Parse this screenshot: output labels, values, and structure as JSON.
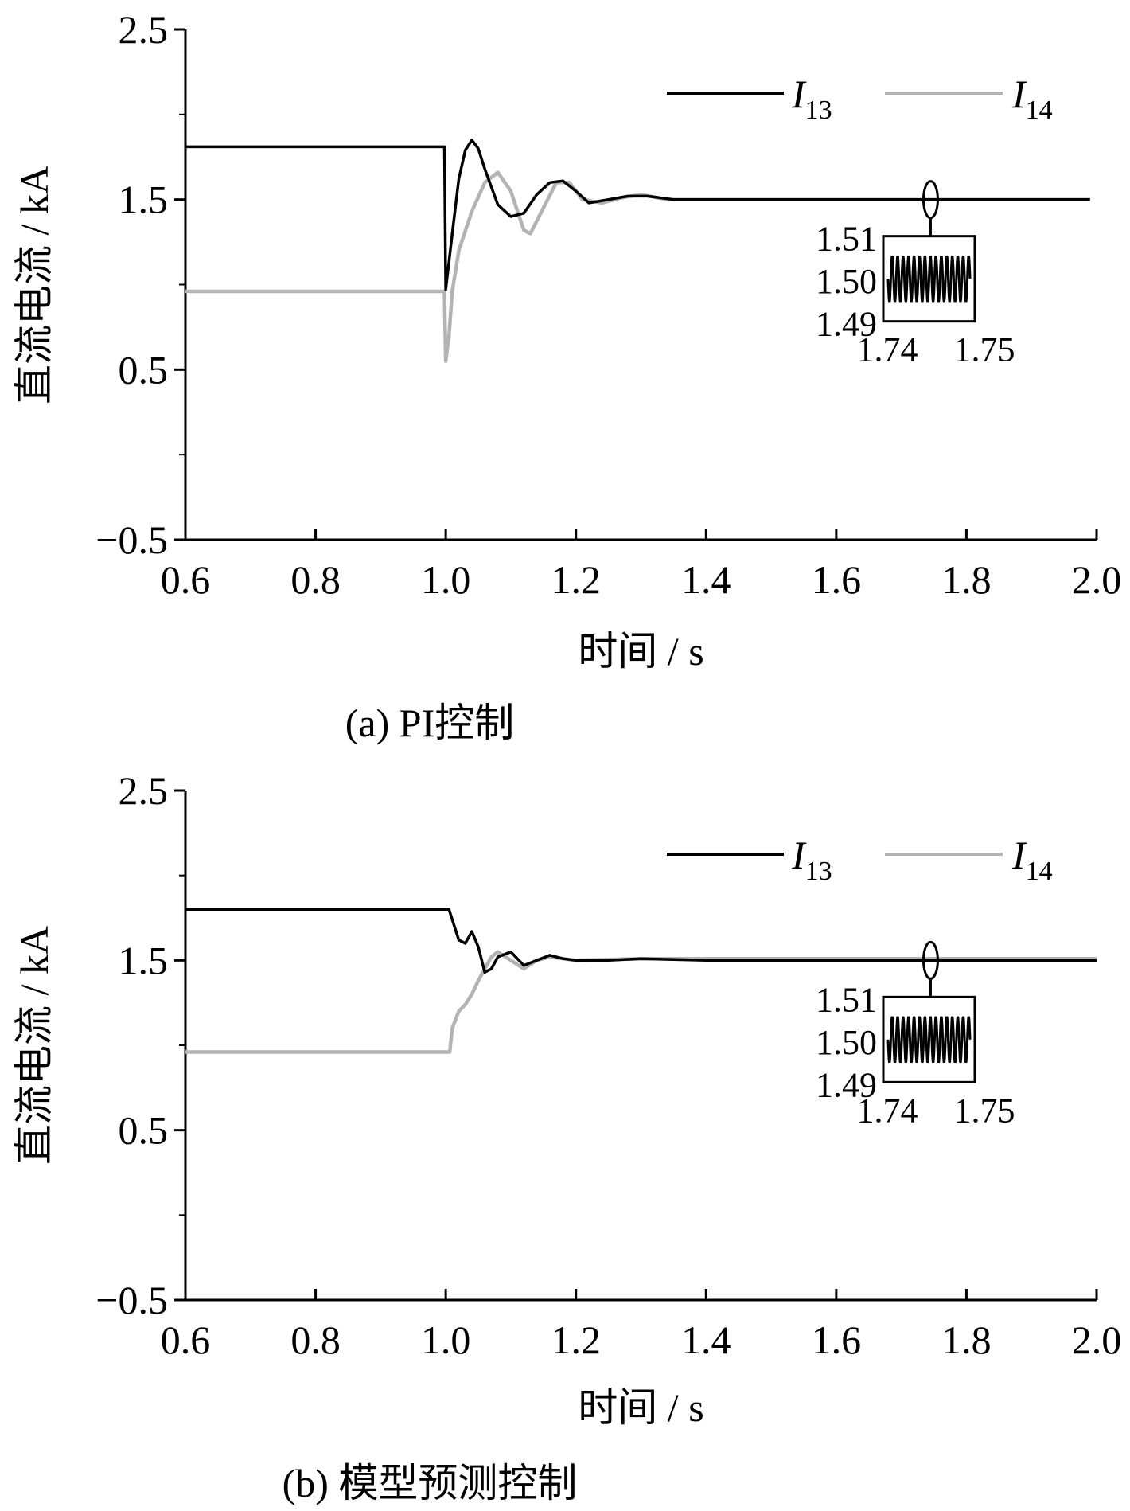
{
  "colors": {
    "I13": "#000000",
    "I14": "#b3b3b3",
    "axis": "#000000"
  },
  "chart_data": [
    {
      "type": "line",
      "caption": "(a)  PI控制",
      "xlabel": "时间 / s",
      "ylabel": "直流电流 / kA",
      "xlim": [
        0.6,
        2.0
      ],
      "ylim": [
        -0.5,
        2.5
      ],
      "x_ticks": [
        "0.6",
        "0.8",
        "1.0",
        "1.2",
        "1.4",
        "1.6",
        "1.8",
        "2.0"
      ],
      "y_ticks": [
        "−0.5",
        "0.5",
        "1.5",
        "2.5"
      ],
      "legend_position": "top-right",
      "grid": false,
      "series": [
        {
          "name": "I13",
          "name_main": "I",
          "name_sub": "13",
          "color": "#000000",
          "x": [
            0.6,
            0.998,
            1.0,
            1.01,
            1.02,
            1.03,
            1.04,
            1.05,
            1.06,
            1.08,
            1.1,
            1.12,
            1.14,
            1.16,
            1.18,
            1.2,
            1.22,
            1.25,
            1.28,
            1.31,
            1.35,
            1.4,
            1.5,
            1.6,
            1.7,
            1.8,
            1.9,
            1.99
          ],
          "y": [
            1.81,
            1.81,
            0.97,
            1.3,
            1.62,
            1.79,
            1.85,
            1.8,
            1.68,
            1.47,
            1.4,
            1.42,
            1.53,
            1.6,
            1.61,
            1.55,
            1.48,
            1.5,
            1.52,
            1.52,
            1.5,
            1.5,
            1.5,
            1.5,
            1.5,
            1.5,
            1.5,
            1.5
          ]
        },
        {
          "name": "I14",
          "name_main": "I",
          "name_sub": "14",
          "color": "#b3b3b3",
          "x": [
            0.6,
            0.998,
            1.0,
            1.005,
            1.01,
            1.02,
            1.04,
            1.06,
            1.08,
            1.1,
            1.12,
            1.13,
            1.15,
            1.17,
            1.19,
            1.21,
            1.24,
            1.27,
            1.3,
            1.34,
            1.38,
            1.45,
            1.5,
            1.6,
            1.7,
            1.8,
            1.9,
            1.99
          ],
          "y": [
            0.96,
            0.96,
            0.55,
            0.7,
            0.96,
            1.2,
            1.43,
            1.6,
            1.66,
            1.55,
            1.32,
            1.3,
            1.45,
            1.6,
            1.6,
            1.5,
            1.48,
            1.51,
            1.53,
            1.5,
            1.5,
            1.5,
            1.5,
            1.5,
            1.5,
            1.5,
            1.5,
            1.5
          ]
        }
      ],
      "inset": {
        "marker_x": 1.745,
        "x_ticks": [
          "1.74",
          "1.75"
        ],
        "y_ticks": [
          "1.51",
          "1.50",
          "1.49"
        ],
        "ylim": [
          1.49,
          1.51
        ],
        "oscillation_cycles": 15
      }
    },
    {
      "type": "line",
      "caption": "(b)  模型预测控制",
      "xlabel": "时间 / s",
      "ylabel": "直流电流 / kA",
      "xlim": [
        0.6,
        2.0
      ],
      "ylim": [
        -0.5,
        2.5
      ],
      "x_ticks": [
        "0.6",
        "0.8",
        "1.0",
        "1.2",
        "1.4",
        "1.6",
        "1.8",
        "2.0"
      ],
      "y_ticks": [
        "−0.5",
        "0.5",
        "1.5",
        "2.5"
      ],
      "legend_position": "top-right",
      "grid": false,
      "series": [
        {
          "name": "I13",
          "name_main": "I",
          "name_sub": "13",
          "color": "#000000",
          "x": [
            0.6,
            1.005,
            1.02,
            1.03,
            1.04,
            1.05,
            1.06,
            1.07,
            1.08,
            1.1,
            1.12,
            1.14,
            1.16,
            1.18,
            1.2,
            1.25,
            1.3,
            1.4,
            1.5,
            1.6,
            1.7,
            1.8,
            1.9,
            2.0
          ],
          "y": [
            1.8,
            1.8,
            1.62,
            1.6,
            1.67,
            1.58,
            1.43,
            1.45,
            1.52,
            1.55,
            1.47,
            1.5,
            1.53,
            1.51,
            1.5,
            1.5,
            1.51,
            1.5,
            1.5,
            1.5,
            1.5,
            1.5,
            1.5,
            1.5
          ]
        },
        {
          "name": "I14",
          "name_main": "I",
          "name_sub": "14",
          "color": "#b3b3b3",
          "x": [
            0.6,
            1.006,
            1.01,
            1.02,
            1.03,
            1.04,
            1.05,
            1.06,
            1.07,
            1.08,
            1.1,
            1.12,
            1.14,
            1.16,
            1.18,
            1.2,
            1.3,
            1.4,
            1.5,
            1.6,
            1.7,
            1.8,
            1.9,
            2.0
          ],
          "y": [
            0.96,
            0.96,
            1.1,
            1.2,
            1.24,
            1.3,
            1.38,
            1.45,
            1.52,
            1.55,
            1.5,
            1.45,
            1.5,
            1.52,
            1.51,
            1.5,
            1.51,
            1.51,
            1.51,
            1.51,
            1.51,
            1.51,
            1.51,
            1.51
          ]
        }
      ],
      "inset": {
        "marker_x": 1.745,
        "x_ticks": [
          "1.74",
          "1.75"
        ],
        "y_ticks": [
          "1.51",
          "1.50",
          "1.49"
        ],
        "ylim": [
          1.49,
          1.51
        ],
        "oscillation_cycles": 15
      }
    }
  ]
}
